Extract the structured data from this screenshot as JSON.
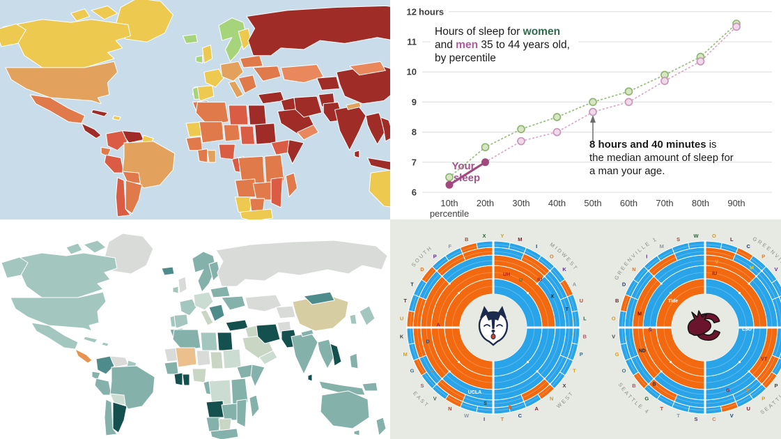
{
  "layout": {
    "panels": [
      "press-freedom-world-map",
      "sleep-percentile-chart",
      "teal-world-map",
      "bracket-radial-charts"
    ]
  },
  "chart_data": [
    {
      "type": "line",
      "name": "sleep-by-percentile",
      "title_lines": [
        [
          {
            "t": "Hours of sleep for ",
            "style": "plain"
          },
          {
            "t": "women",
            "style": "women"
          }
        ],
        [
          {
            "t": "and ",
            "style": "plain"
          },
          {
            "t": "men",
            "style": "men"
          },
          {
            "t": " 35 to 44 years old,",
            "style": "plain"
          }
        ],
        [
          {
            "t": "by percentile",
            "style": "plain"
          }
        ]
      ],
      "x_labels": [
        "10th",
        "20th",
        "30th",
        "40th",
        "50th",
        "60th",
        "70th",
        "80th",
        "90th"
      ],
      "x_sublabel": "percentile",
      "y_ticks": [
        6,
        7,
        8,
        9,
        10,
        11
      ],
      "y_top_label_num": "12",
      "y_top_label_unit": " hours",
      "ylim": [
        6,
        12
      ],
      "grid": "horizontal",
      "series": [
        {
          "name": "women",
          "values": [
            6.5,
            7.5,
            8.1,
            8.5,
            9.0,
            9.35,
            9.9,
            10.5,
            11.6
          ],
          "line_color": "#9CBF80",
          "dot_fill": "#D7E6C2",
          "dot_stroke": "#8FB573",
          "dash": true
        },
        {
          "name": "men",
          "values": [
            6.25,
            7.0,
            7.7,
            8.0,
            8.67,
            9.0,
            9.7,
            10.35,
            11.5
          ],
          "line_color": "#DCABCD",
          "dot_fill": "#F0D9E8",
          "dot_stroke": "#C996BB",
          "dash": true,
          "highlight_first_n": 2,
          "highlight_color": "#A3487F"
        }
      ],
      "your_sleep_label": [
        "Your",
        "sleep"
      ],
      "your_sleep_color": "#A3538C",
      "annotation": {
        "bold": "8 hours and 40 minutes",
        "rest_line1": " is",
        "line2": "the median amount of sleep for",
        "line3": "a man your age.",
        "arrow_color": "#6E6E6E",
        "points_to": {
          "series": "men",
          "x": "50th",
          "value": 8.67
        }
      },
      "colors": {
        "women_word": "#2F6B4A",
        "men_word": "#B5599F",
        "text": "#1A1A1A",
        "axis_text": "#3E3E3E",
        "grid": "#DCDCDA",
        "bg": "#FFFFFF"
      }
    },
    {
      "type": "choropleth",
      "name": "press-map",
      "ocean": "#C8DCEA",
      "border": "#FFFFFF",
      "palette": {
        "yellow": "#EDC94F",
        "green": "#A6D47A",
        "sandy": "#E2A25D",
        "orange2": "#E07A4A",
        "red3": "#DB5C45",
        "salmon": "#E8885C",
        "darkred": "#A02C28"
      },
      "default_fill": "orange2",
      "fills": {
        "greenland": "yellow",
        "canada": "yellow",
        "arctic1": "yellow",
        "arctic2": "yellow",
        "alaska": "yellow",
        "usa": "sandy",
        "mexico": "orange2",
        "centralamerica": "darkred",
        "cuba": "darkred",
        "caribbean": "yellow",
        "colombia": "red3",
        "venezuela": "darkred",
        "guyanas": "yellow",
        "ecuador": "orange2",
        "peru": "red3",
        "brazil": "sandy",
        "bolivia": "orange2",
        "chile": "red3",
        "argentina": "orange2",
        "iceland": "green",
        "uk": "yellow",
        "ireland": "green",
        "nordics": "green",
        "finland": "yellow",
        "france": "yellow",
        "iberia": "yellow",
        "portugal": "green",
        "centraleurope": "sandy",
        "italy": "sandy",
        "balkans": "orange2",
        "ukraine": "orange2",
        "easteurope": "orange2",
        "russia": "darkred",
        "kazakh": "salmon",
        "centralasia": "darkred",
        "turkey": "darkred",
        "levant": "darkred",
        "saudi": "darkred",
        "yemenoman": "salmon",
        "iran": "darkred",
        "afghan": "darkred",
        "pakistan": "darkred",
        "india": "darkred",
        "srilanka": "darkred",
        "nepal": "sandy",
        "china": "darkred",
        "mongolia": "salmon",
        "myanthai": "darkred",
        "vietnam": "darkred",
        "indonesia": "darkred",
        "philippines": "darkred",
        "japan": "yellow",
        "korea": "darkred",
        "morocco": "orange2",
        "algeria": "orange2",
        "libya": "red3",
        "egypt": "darkred",
        "mauritania": "yellow",
        "mali": "orange2",
        "niger": "orange2",
        "chad": "red3",
        "sudan": "darkred",
        "ethiopia": "red3",
        "somalia": "darkred",
        "senegalguinea": "orange2",
        "ivorycoast": "orange2",
        "ghana": "sandy",
        "nigeria": "red3",
        "cameroon": "red3",
        "drc": "orange2",
        "kenyatz": "orange2",
        "angola": "orange2",
        "zambiazim": "orange2",
        "mozambique": "red3",
        "namibia": "yellow",
        "botswana": "orange2",
        "southafrica": "yellow",
        "madagascar": "orange2",
        "australia": "yellow",
        "tasmania": "yellow",
        "newzealand": "yellow",
        "png": "darkred"
      }
    },
    {
      "type": "choropleth",
      "name": "teal-map",
      "ocean": "#FFFFFF",
      "border": "#FFFFFF",
      "palette": {
        "gray": "#D9DBD9",
        "light": "#A3C6BF",
        "medium": "#85B1AB",
        "mdark": "#4E8C8C",
        "dark": "#14504D",
        "pale": "#CBDCD2",
        "sage": "#C9D6C4",
        "khaki": "#D6CEA2",
        "tan": "#EBC08C",
        "orange": "#E8944F"
      },
      "default_fill": "light",
      "fills": {
        "greenland": "gray",
        "canada": "light",
        "arctic1": "light",
        "arctic2": "light",
        "alaska": "light",
        "usa": "light",
        "mexico": "light",
        "centralamerica": "orange",
        "cuba": "light",
        "caribbean": "light",
        "colombia": "mdark",
        "venezuela": "gray",
        "guyanas": "light",
        "ecuador": "medium",
        "peru": "medium",
        "brazil": "medium",
        "bolivia": "pale",
        "chile": "medium",
        "argentina": "dark",
        "iceland": "mdark",
        "uk": "gray",
        "ireland": "light",
        "nordics": "medium",
        "finland": "medium",
        "france": "light",
        "iberia": "light",
        "portugal": "light",
        "centraleurope": "pale",
        "italy": "sage",
        "balkans": "mdark",
        "ukraine": "medium",
        "easteurope": "medium",
        "russia": "gray",
        "kazakh": "gray",
        "centralasia": "gray",
        "turkey": "dark",
        "levant": "sage",
        "saudi": "sage",
        "yemenoman": "pale",
        "iran": "dark",
        "afghan": "gray",
        "pakistan": "dark",
        "india": "medium",
        "srilanka": "dark",
        "nepal": "medium",
        "china": "khaki",
        "mongolia": "mdark",
        "myanthai": "medium",
        "vietnam": "dark",
        "indonesia": "medium",
        "philippines": "medium",
        "japan": "light",
        "korea": "light",
        "morocco": "medium",
        "algeria": "medium",
        "libya": "light",
        "egypt": "dark",
        "mauritania": "gray",
        "mali": "tan",
        "niger": "gray",
        "chad": "sage",
        "sudan": "pale",
        "ethiopia": "medium",
        "somalia": "medium",
        "senegalguinea": "medium",
        "ivorycoast": "dark",
        "ghana": "dark",
        "nigeria": "sage",
        "cameroon": "medium",
        "drc": "pale",
        "kenyatz": "medium",
        "angola": "dark",
        "zambiazim": "medium",
        "mozambique": "medium",
        "namibia": "medium",
        "botswana": "sage",
        "southafrica": "medium",
        "madagascar": "medium",
        "australia": "medium",
        "tasmania": "medium",
        "newzealand": "medium",
        "png": "medium"
      }
    },
    {
      "type": "radial-bracket",
      "name": "march-madness-brackets",
      "bg": "#E6EAE3",
      "orange": "#F2690F",
      "blue": "#29A4E9",
      "label_color": "#878D85",
      "circles": [
        {
          "logo": "husky",
          "labels": [
            {
              "text": "SOUTH",
              "pos": "tl"
            },
            {
              "text": "MIDWEST",
              "pos": "tr"
            },
            {
              "text": "EAST",
              "pos": "bl"
            },
            {
              "text": "WEST",
              "pos": "br"
            }
          ],
          "rings": [
            [
              "B",
              "O"
            ],
            [
              "O",
              "B",
              "O",
              "O"
            ],
            [
              "O",
              "B",
              "B",
              "B",
              "B",
              "O",
              "O",
              "B"
            ],
            [
              "B",
              "O",
              "B",
              "B",
              "B",
              "B",
              "O",
              "B",
              "B",
              "O",
              "B",
              "O",
              "O",
              "B",
              "O",
              "O"
            ],
            [
              "B",
              "B",
              "B",
              "B",
              "B",
              "O",
              "B",
              "B",
              "B",
              "B",
              "B",
              "B",
              "O",
              "B",
              "B",
              "B",
              "B",
              "B",
              "O",
              "B",
              "B",
              "O",
              "B",
              "B",
              "O",
              "B",
              "B",
              "O",
              "B",
              "B",
              "O",
              "B"
            ]
          ],
          "perimeter": [
            "Y",
            "M",
            "I",
            "O",
            "K",
            "A",
            "U",
            "L",
            "B",
            "P",
            "T",
            "X",
            "N",
            "A",
            "C",
            "T",
            "I",
            "W",
            "N",
            "V",
            "S",
            "G",
            "M",
            "K",
            "U",
            "T",
            "T",
            "D",
            "P",
            "F",
            "B",
            "X"
          ],
          "inner_marks": [
            {
              "t": "UH",
              "a": 14,
              "r": 79,
              "c": "#C8102E"
            },
            {
              "t": "U",
              "a": 30,
              "r": 79,
              "c": "#2E7D4F"
            },
            {
              "t": "IU",
              "a": 44,
              "r": 96,
              "c": "#991B1E"
            },
            {
              "t": "X",
              "a": 62,
              "r": 96,
              "c": "#1A1A1A"
            },
            {
              "t": "T",
              "a": 76,
              "r": 109,
              "c": "#500000"
            },
            {
              "t": "A",
              "a": 273,
              "r": 79,
              "c": "#9E1B32"
            },
            {
              "t": "UCLA",
              "a": 196,
              "r": 96,
              "c": "#FFFFFF"
            },
            {
              "t": "D",
              "a": 258,
              "r": 96,
              "c": "#00539B"
            },
            {
              "t": "T",
              "a": 234,
              "r": 109,
              "c": "#FF8200"
            },
            {
              "t": "S",
              "a": 186,
              "r": 109,
              "c": "#18453B"
            },
            {
              "t": "B",
              "a": 168,
              "r": 117,
              "c": "#DD550C"
            }
          ]
        },
        {
          "logo": "gamecock",
          "labels": [
            {
              "text": "GREENVILLE 1",
              "pos": "tl"
            },
            {
              "text": "GREENVILLE 2",
              "pos": "tr"
            },
            {
              "text": "SEATTLE 4",
              "pos": "bl"
            },
            {
              "text": "SEATTLE 3",
              "pos": "br"
            }
          ],
          "rings": [
            [
              "B",
              "O"
            ],
            [
              "O",
              "B",
              "O",
              "B"
            ],
            [
              "O",
              "B",
              "O",
              "B",
              "B",
              "O",
              "O",
              "B"
            ],
            [
              "O",
              "B",
              "B",
              "B",
              "B",
              "O",
              "B",
              "B",
              "B",
              "O",
              "B",
              "B",
              "B",
              "B",
              "O",
              "B"
            ],
            [
              "B",
              "B",
              "O",
              "B",
              "B",
              "B",
              "B",
              "B",
              "B",
              "B",
              "B",
              "O",
              "B",
              "B",
              "O",
              "B",
              "B",
              "B",
              "B",
              "B",
              "O",
              "B",
              "B",
              "B",
              "B",
              "O",
              "B",
              "B",
              "B",
              "B",
              "B",
              "B"
            ]
          ],
          "perimeter": [
            "O",
            "L",
            "C",
            "P",
            "V",
            "U",
            "L",
            "V",
            "M",
            "L",
            "H",
            "P",
            "P",
            "U",
            "V",
            "C",
            "S",
            "T",
            "T",
            "G",
            "B",
            "O",
            "G",
            "V",
            "O",
            "B",
            "D",
            "N",
            "I",
            "M",
            "S",
            "W"
          ],
          "inner_marks": [
            {
              "t": "IU",
              "a": 10,
              "r": 79,
              "c": "#991B1E"
            },
            {
              "t": "V",
              "a": 10,
              "r": 96,
              "c": "#E8B93C"
            },
            {
              "t": "M",
              "a": 38,
              "r": 109,
              "c": "#FFCB05"
            },
            {
              "t": "LSU",
              "a": 92,
              "r": 60,
              "c": "#FFFFFF"
            },
            {
              "t": "VT",
              "a": 118,
              "r": 96,
              "c": "#861F41"
            },
            {
              "t": "T",
              "a": 146,
              "r": 109,
              "c": "#FF8200"
            },
            {
              "t": "G",
              "a": 160,
              "r": 96,
              "c": "#BA0C2F"
            },
            {
              "t": "S",
              "a": 268,
              "r": 79,
              "c": "#4B2E83"
            },
            {
              "t": "Tide",
              "a": 310,
              "r": 60,
              "c": "#FFFFFF"
            },
            {
              "t": "M",
              "a": 282,
              "r": 96,
              "c": "#800000"
            },
            {
              "t": "ND",
              "a": 250,
              "r": 96,
              "c": "#0C2340"
            },
            {
              "t": "B",
              "a": 222,
              "r": 109,
              "c": "#13294B"
            }
          ]
        }
      ],
      "logo_colors": {
        "husky_navy": "#1C2B4D",
        "husky_tongue": "#C4422F",
        "gamecock_garnet": "#6B142E",
        "gamecock_outline": "#141414"
      }
    }
  ],
  "perimeter_palette": [
    "#C79A3B",
    "#7A1F2B",
    "#1F3A7A",
    "#E07B2E",
    "#5B2D8C",
    "#8C97A3",
    "#B5462F",
    "#2C5F3A",
    "#C04A72",
    "#3C6E8F",
    "#D4A017",
    "#444444"
  ]
}
